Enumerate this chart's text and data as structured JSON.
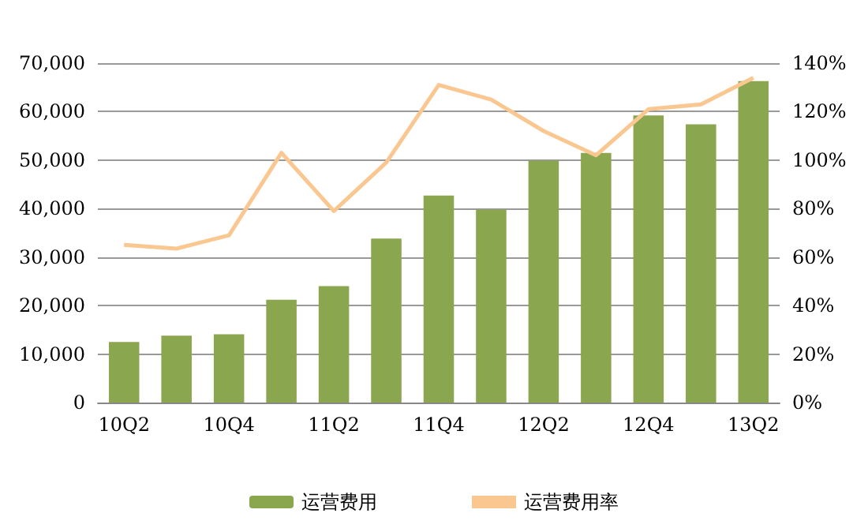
{
  "chart_data": {
    "type": "bar",
    "categories": [
      "10Q2",
      null,
      "10Q4",
      null,
      "11Q2",
      null,
      "11Q4",
      null,
      "12Q2",
      null,
      "12Q4",
      null,
      "13Q2"
    ],
    "series": [
      {
        "name": "运营费用",
        "color": "#8aa64e",
        "values": [
          12500,
          13800,
          14100,
          21200,
          24000,
          33800,
          42700,
          39800,
          49900,
          51500,
          59200,
          57400,
          66300
        ]
      },
      {
        "name": "运营费用率",
        "type": "line",
        "axis": "y2",
        "color": "#fac791",
        "marker": "none",
        "values": [
          65,
          63.5,
          69,
          103,
          79,
          99,
          131,
          125,
          112,
          102,
          121,
          123,
          134
        ]
      }
    ],
    "ylim": [
      0,
      70000
    ],
    "yticks": [
      0,
      {
        "value": 10000,
        "label": "10,000"
      },
      {
        "value": 20000,
        "label": "20,000"
      },
      {
        "value": 30000,
        "label": "30,000"
      },
      {
        "value": 40000,
        "label": "40,000"
      },
      {
        "value": 50000,
        "label": "50,000"
      },
      {
        "value": 60000,
        "label": "60,000"
      },
      {
        "value": 70000,
        "label": "70,000"
      }
    ],
    "y2lim": [
      0,
      140
    ],
    "y2ticks": [
      {
        "value": 0,
        "label": "0%"
      },
      {
        "value": 20,
        "label": "20%"
      },
      {
        "value": 40,
        "label": "40%"
      },
      {
        "value": 60,
        "label": "60%"
      },
      {
        "value": 80,
        "label": "80%"
      },
      {
        "value": 100,
        "label": "100%"
      },
      {
        "value": 120,
        "label": "120%"
      },
      {
        "value": 140,
        "label": "140%"
      }
    ],
    "grid": "y",
    "legend": "bottom"
  }
}
